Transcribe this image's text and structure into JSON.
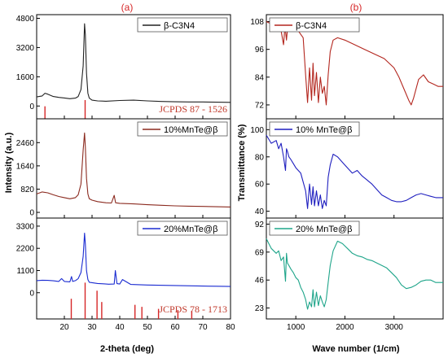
{
  "figure": {
    "left_label": "(a)",
    "right_label": "(b)",
    "left_xlabel": "2-theta (deg)",
    "left_ylabel": "Intensity (a.u.)",
    "right_xlabel": "Wave number (1/cm)",
    "right_ylabel": "Transmittance (%)"
  },
  "colors": {
    "bc3n4_xrd": "#222222",
    "bc3n4_ftir": "#b3261e",
    "mnte10": "#8b2a1f",
    "mnte10_ftir": "#1f1fbf",
    "mnte20": "#1a2bd1",
    "mnte20_ftir": "#1fa58a",
    "reference": "#d62728"
  },
  "chart_data": [
    {
      "type": "line",
      "panel": "a-top",
      "legend": "β-C3N4",
      "annotation": "JCPDS 87 - 1526",
      "xlim": [
        10,
        80
      ],
      "ylim": [
        -700,
        5000
      ],
      "yticks": [
        0,
        1600,
        3200,
        4800
      ],
      "xticks": [
        20,
        30,
        40,
        50,
        60,
        70,
        80
      ],
      "reference_lines": [
        {
          "x": 13,
          "height": 300
        },
        {
          "x": 27.5,
          "height": 450
        }
      ],
      "series": [
        {
          "name": "β-C3N4",
          "x": [
            10,
            12,
            13,
            14,
            16,
            18,
            20,
            22,
            24,
            25,
            26,
            26.8,
            27.3,
            27.6,
            28,
            28.5,
            29,
            30,
            32,
            35,
            40,
            45,
            50,
            55,
            60,
            65,
            70,
            75,
            80
          ],
          "y": [
            500,
            550,
            700,
            650,
            520,
            470,
            440,
            400,
            430,
            520,
            900,
            2200,
            4500,
            3900,
            1800,
            700,
            430,
            320,
            280,
            260,
            300,
            320,
            280,
            250,
            230,
            220,
            220,
            210,
            200
          ]
        }
      ]
    },
    {
      "type": "line",
      "panel": "a-middle",
      "legend": "10%MnTe@β",
      "xlim": [
        10,
        80
      ],
      "ylim": [
        -200,
        3300
      ],
      "yticks": [
        0,
        820,
        1640,
        2460
      ],
      "xticks": [
        20,
        30,
        40,
        50,
        60,
        70,
        80
      ],
      "series": [
        {
          "name": "10%MnTe@β",
          "x": [
            10,
            12,
            14,
            16,
            18,
            20,
            22,
            24,
            25,
            26,
            26.8,
            27.3,
            27.6,
            28,
            28.5,
            29,
            30,
            32,
            35,
            37,
            38,
            38.5,
            40,
            45,
            50,
            55,
            60,
            65,
            70,
            75,
            80
          ],
          "y": [
            650,
            720,
            690,
            620,
            560,
            520,
            480,
            520,
            620,
            1000,
            2200,
            2800,
            2300,
            1200,
            650,
            480,
            430,
            380,
            340,
            330,
            600,
            340,
            320,
            300,
            270,
            250,
            230,
            220,
            210,
            200,
            190
          ]
        }
      ]
    },
    {
      "type": "line",
      "panel": "a-bottom",
      "legend": "20%MnTe@β",
      "annotation": "JCPDS 78 - 1713",
      "xlim": [
        10,
        80
      ],
      "ylim": [
        -1300,
        3700
      ],
      "yticks": [
        0,
        1100,
        2200,
        3300
      ],
      "xticks": [
        20,
        30,
        40,
        50,
        60,
        70,
        80
      ],
      "reference_lines": [
        {
          "x": 22.5,
          "height": 500
        },
        {
          "x": 27.5,
          "height": 900
        },
        {
          "x": 31.8,
          "height": 700
        },
        {
          "x": 33.5,
          "height": 420
        },
        {
          "x": 45.5,
          "height": 350
        },
        {
          "x": 48,
          "height": 300
        },
        {
          "x": 54,
          "height": 250
        },
        {
          "x": 61,
          "height": 220
        },
        {
          "x": 66,
          "height": 200
        }
      ],
      "series": [
        {
          "name": "20%MnTe@β",
          "x": [
            10,
            12,
            14,
            16,
            18,
            19,
            20,
            22,
            22.6,
            23,
            24,
            25,
            26,
            26.8,
            27.3,
            27.6,
            28,
            28.5,
            29,
            30,
            32,
            34,
            36,
            38,
            38.4,
            39,
            40,
            41,
            44,
            46,
            50,
            54,
            58,
            62,
            66,
            70,
            75,
            80
          ],
          "y": [
            600,
            620,
            610,
            590,
            560,
            700,
            560,
            540,
            800,
            560,
            600,
            700,
            1000,
            1800,
            2950,
            2400,
            1100,
            650,
            520,
            500,
            460,
            440,
            420,
            430,
            1100,
            450,
            430,
            650,
            410,
            400,
            380,
            370,
            360,
            350,
            340,
            330,
            320,
            310
          ]
        }
      ]
    },
    {
      "type": "line",
      "panel": "b-top",
      "legend": "β-C3N4",
      "xlim": [
        400,
        4000
      ],
      "ylim": [
        66,
        111
      ],
      "yticks": [
        72,
        84,
        96,
        108
      ],
      "series": [
        {
          "name": "β-C3N4",
          "x": [
            400,
            500,
            600,
            700,
            750,
            780,
            810,
            840,
            880,
            950,
            1050,
            1150,
            1200,
            1240,
            1280,
            1320,
            1350,
            1380,
            1420,
            1460,
            1500,
            1540,
            1580,
            1620,
            1660,
            1700,
            1760,
            1850,
            2000,
            2200,
            2400,
            2600,
            2800,
            3000,
            3100,
            3200,
            3300,
            3350,
            3400,
            3500,
            3600,
            3700,
            3800,
            3900,
            4000
          ],
          "y": [
            108,
            107,
            106,
            104,
            98,
            106,
            100,
            107,
            106,
            105,
            104,
            101,
            85,
            73,
            88,
            74,
            90,
            76,
            86,
            73,
            84,
            77,
            80,
            72,
            85,
            95,
            100,
            101,
            100,
            98,
            96,
            94,
            92,
            88,
            84,
            79,
            74,
            72,
            75,
            83,
            85,
            82,
            81,
            80,
            80
          ]
        }
      ]
    },
    {
      "type": "line",
      "panel": "b-middle",
      "legend": "10% MnTe@β",
      "xlim": [
        400,
        4000
      ],
      "ylim": [
        35,
        108
      ],
      "yticks": [
        40,
        60,
        80,
        100
      ],
      "series": [
        {
          "name": "10% MnTe@β",
          "x": [
            400,
            500,
            600,
            650,
            700,
            750,
            790,
            810,
            830,
            860,
            900,
            950,
            1000,
            1100,
            1200,
            1240,
            1280,
            1320,
            1350,
            1380,
            1420,
            1460,
            1500,
            1540,
            1580,
            1620,
            1660,
            1700,
            1760,
            1850,
            1950,
            2050,
            2150,
            2250,
            2350,
            2450,
            2550,
            2650,
            2750,
            2850,
            2950,
            3050,
            3150,
            3250,
            3350,
            3450,
            3550,
            3650,
            3750,
            3850,
            4000
          ],
          "y": [
            96,
            90,
            92,
            86,
            90,
            80,
            70,
            86,
            84,
            80,
            78,
            75,
            72,
            68,
            55,
            42,
            60,
            45,
            58,
            44,
            55,
            44,
            52,
            42,
            48,
            44,
            65,
            74,
            82,
            80,
            76,
            72,
            68,
            70,
            66,
            63,
            60,
            56,
            52,
            50,
            48,
            47,
            47,
            48,
            50,
            52,
            53,
            52,
            51,
            50,
            50
          ]
        }
      ]
    },
    {
      "type": "line",
      "panel": "b-bottom",
      "legend": "20% MnTe@β",
      "xlim": [
        400,
        4000
      ],
      "ylim": [
        14,
        97
      ],
      "yticks": [
        23,
        46,
        69,
        92
      ],
      "series": [
        {
          "name": "20% MnTe@β",
          "x": [
            400,
            450,
            500,
            600,
            650,
            700,
            750,
            790,
            810,
            830,
            860,
            900,
            950,
            1000,
            1050,
            1100,
            1150,
            1200,
            1240,
            1280,
            1320,
            1350,
            1380,
            1420,
            1460,
            1500,
            1540,
            1580,
            1620,
            1660,
            1700,
            1760,
            1850,
            1950,
            2050,
            2150,
            2250,
            2350,
            2450,
            2550,
            2650,
            2750,
            2850,
            2950,
            3050,
            3150,
            3250,
            3350,
            3450,
            3550,
            3650,
            3750,
            3850,
            4000
          ],
          "y": [
            80,
            76,
            72,
            68,
            70,
            62,
            65,
            45,
            68,
            60,
            58,
            55,
            52,
            48,
            46,
            40,
            36,
            30,
            22,
            28,
            24,
            38,
            24,
            36,
            25,
            33,
            28,
            24,
            30,
            44,
            58,
            70,
            78,
            76,
            72,
            68,
            66,
            65,
            63,
            62,
            60,
            58,
            56,
            52,
            48,
            42,
            39,
            40,
            42,
            45,
            46,
            46,
            44,
            44
          ]
        }
      ]
    }
  ]
}
